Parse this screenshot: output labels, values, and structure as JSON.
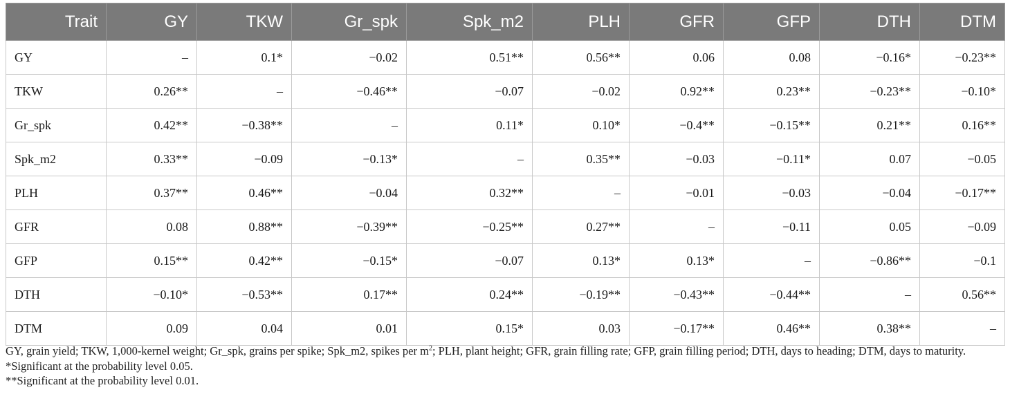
{
  "table": {
    "headers": [
      "Trait",
      "GY",
      "TKW",
      "Gr_spk",
      "Spk_m2",
      "PLH",
      "GFR",
      "GFP",
      "DTH",
      "DTM"
    ],
    "rows": [
      {
        "trait": "GY",
        "values": [
          "–",
          "0.1*",
          "−0.02",
          "0.51**",
          "0.56**",
          "0.06",
          "0.08",
          "−0.16*",
          "−0.23**"
        ]
      },
      {
        "trait": "TKW",
        "values": [
          "0.26**",
          "–",
          "−0.46**",
          "−0.07",
          "−0.02",
          "0.92**",
          "0.23**",
          "−0.23**",
          "−0.10*"
        ]
      },
      {
        "trait": "Gr_spk",
        "values": [
          "0.42**",
          "−0.38**",
          "–",
          "0.11*",
          "0.10*",
          "−0.4**",
          "−0.15**",
          "0.21**",
          "0.16**"
        ]
      },
      {
        "trait": "Spk_m2",
        "values": [
          "0.33**",
          "−0.09",
          "−0.13*",
          "–",
          "0.35**",
          "−0.03",
          "−0.11*",
          "0.07",
          "−0.05"
        ]
      },
      {
        "trait": "PLH",
        "values": [
          "0.37**",
          "0.46**",
          "−0.04",
          "0.32**",
          "–",
          "−0.01",
          "−0.03",
          "−0.04",
          "−0.17**"
        ]
      },
      {
        "trait": "GFR",
        "values": [
          "0.08",
          "0.88**",
          "−0.39**",
          "−0.25**",
          "0.27**",
          "–",
          "−0.11",
          "0.05",
          "−0.09"
        ]
      },
      {
        "trait": "GFP",
        "values": [
          "0.15**",
          "0.42**",
          "−0.15*",
          "−0.07",
          "0.13*",
          "0.13*",
          "–",
          "−0.86**",
          "−0.1"
        ]
      },
      {
        "trait": "DTH",
        "values": [
          "−0.10*",
          "−0.53**",
          "0.17**",
          "0.24**",
          "−0.19**",
          "−0.43**",
          "−0.44**",
          "–",
          "0.56**"
        ]
      },
      {
        "trait": "DTM",
        "values": [
          "0.09",
          "0.04",
          "0.01",
          "0.15*",
          "0.03",
          "−0.17**",
          "0.46**",
          "0.38**",
          "–"
        ]
      }
    ]
  },
  "notes": {
    "abbrev_part1": "GY, grain yield; TKW, 1,000-kernel weight; Gr_spk, grains per spike; Spk_m2, spikes per m",
    "abbrev_sup": "2",
    "abbrev_part2": "; PLH, plant height; GFR, grain filling rate; GFP, grain filling period; DTH, days to heading; DTM, days to maturity.",
    "sig_005": "*Significant at the probability level 0.05.",
    "sig_001": "**Significant at the probability level 0.01."
  }
}
